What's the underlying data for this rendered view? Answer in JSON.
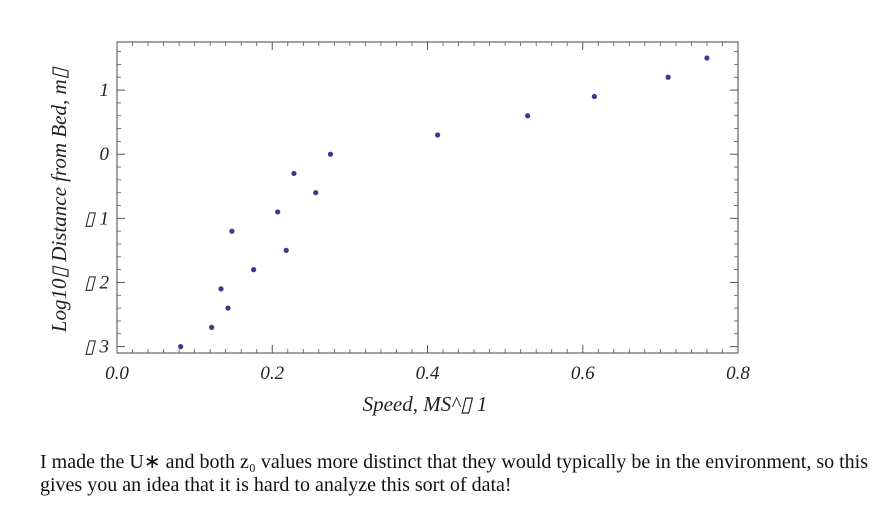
{
  "chart_data": {
    "type": "scatter",
    "xlabel": "Speed, MS^▯ 1",
    "ylabel": "Log10▯ Distance from Bed, m▯",
    "xlim": [
      0.0,
      0.8
    ],
    "ylim": [
      -3.1,
      1.75
    ],
    "x_ticks": [
      0.0,
      0.2,
      0.4,
      0.6,
      0.8
    ],
    "x_tick_labels": [
      "0.0",
      "0.2",
      "0.4",
      "0.6",
      "0.8"
    ],
    "y_ticks": [
      1,
      0,
      -1,
      -2,
      -3
    ],
    "y_tick_labels": [
      "1",
      "0",
      "▯ 1",
      "▯ 2",
      "▯ 3"
    ],
    "grid": false,
    "frame": true,
    "marker_color": "#3a3a8c",
    "x": [
      0.082,
      0.122,
      0.134,
      0.143,
      0.148,
      0.176,
      0.207,
      0.218,
      0.228,
      0.256,
      0.275,
      0.413,
      0.529,
      0.615,
      0.71,
      0.76
    ],
    "y": [
      -3.0,
      -2.7,
      -2.1,
      -2.4,
      -1.2,
      -1.8,
      -0.9,
      -1.5,
      -0.3,
      -0.6,
      0.0,
      0.3,
      0.6,
      0.9,
      1.2,
      1.5
    ]
  },
  "caption": "I made the U∗ and both z₀ values more distinct that they would typically be in the environment, so this gives you an idea that it is hard to analyze this sort of data!"
}
